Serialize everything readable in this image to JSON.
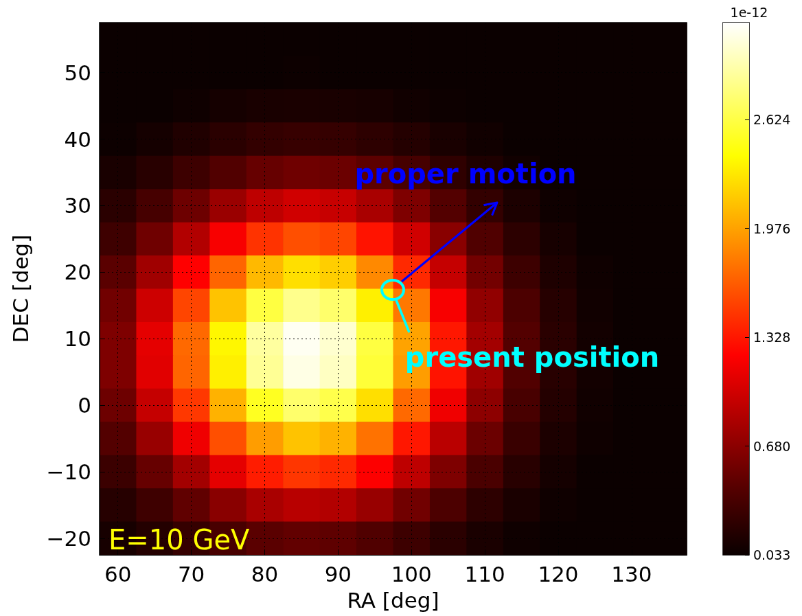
{
  "chart_data": {
    "type": "heatmap",
    "xlabel": "RA [deg]",
    "ylabel": "DEC [deg]",
    "clabel": "1e-12",
    "categories": [
      "60",
      null,
      "70",
      null,
      "80",
      null,
      "90",
      null,
      "100",
      null,
      "110",
      null,
      "120",
      null,
      "130",
      null
    ],
    "y_categories": [
      null,
      "50",
      null,
      "40",
      null,
      "30",
      null,
      "20",
      null,
      "10",
      null,
      "0",
      null,
      "−10",
      null,
      "−20"
    ],
    "cells": [
      [
        0.04,
        0.04,
        0.04,
        0.04,
        0.04,
        0.04,
        0.04,
        0.04,
        0.04,
        0.04,
        0.04,
        0.04,
        0.04,
        0.04,
        0.04,
        0.04
      ],
      [
        0.04,
        0.04,
        0.04,
        0.04,
        0.04,
        0.05,
        0.04,
        0.04,
        0.04,
        0.04,
        0.04,
        0.04,
        0.04,
        0.04,
        0.04,
        0.04
      ],
      [
        0.04,
        0.04,
        0.06,
        0.09,
        0.11,
        0.12,
        0.11,
        0.1,
        0.07,
        0.05,
        0.04,
        0.04,
        0.04,
        0.04,
        0.04,
        0.04
      ],
      [
        0.05,
        0.09,
        0.15,
        0.2,
        0.25,
        0.27,
        0.26,
        0.22,
        0.17,
        0.11,
        0.07,
        0.04,
        0.04,
        0.04,
        0.04,
        0.04
      ],
      [
        0.11,
        0.19,
        0.3,
        0.41,
        0.51,
        0.55,
        0.53,
        0.46,
        0.35,
        0.23,
        0.14,
        0.07,
        0.04,
        0.04,
        0.04,
        0.04
      ],
      [
        0.2,
        0.35,
        0.54,
        0.75,
        0.92,
        1.0,
        0.96,
        0.82,
        0.62,
        0.42,
        0.25,
        0.13,
        0.06,
        0.04,
        0.04,
        0.04
      ],
      [
        0.31,
        0.55,
        0.86,
        1.19,
        1.46,
        1.59,
        1.54,
        1.31,
        1.0,
        0.67,
        0.4,
        0.21,
        0.1,
        0.04,
        0.04,
        0.04
      ],
      [
        0.45,
        0.78,
        1.22,
        1.69,
        2.08,
        2.26,
        2.18,
        1.86,
        1.41,
        0.95,
        0.57,
        0.3,
        0.14,
        0.06,
        0.04,
        0.04
      ],
      [
        0.56,
        0.99,
        1.54,
        2.13,
        2.61,
        2.84,
        2.74,
        2.34,
        1.78,
        1.19,
        0.71,
        0.38,
        0.18,
        0.07,
        0.04,
        0.04
      ],
      [
        0.62,
        1.1,
        1.71,
        2.37,
        2.9,
        3.16,
        3.05,
        2.61,
        1.98,
        1.33,
        0.79,
        0.42,
        0.2,
        0.08,
        0.04,
        0.04
      ],
      [
        0.62,
        1.08,
        1.69,
        2.34,
        2.87,
        3.12,
        3.01,
        2.58,
        1.95,
        1.31,
        0.78,
        0.41,
        0.19,
        0.08,
        0.04,
        0.04
      ],
      [
        0.54,
        0.95,
        1.48,
        2.05,
        2.51,
        2.74,
        2.64,
        2.26,
        1.71,
        1.15,
        0.69,
        0.36,
        0.17,
        0.07,
        0.04,
        0.04
      ],
      [
        0.42,
        0.74,
        1.15,
        1.59,
        1.95,
        2.13,
        2.05,
        1.75,
        1.33,
        0.9,
        0.53,
        0.28,
        0.13,
        0.06,
        0.04,
        0.04
      ],
      [
        0.29,
        0.51,
        0.79,
        1.1,
        1.35,
        1.47,
        1.41,
        1.21,
        0.92,
        0.62,
        0.37,
        0.19,
        0.09,
        0.04,
        0.04,
        0.04
      ],
      [
        0.18,
        0.31,
        0.48,
        0.67,
        0.82,
        0.89,
        0.86,
        0.74,
        0.56,
        0.38,
        0.22,
        0.12,
        0.06,
        0.04,
        0.04,
        0.04
      ],
      [
        0.1,
        0.17,
        0.26,
        0.36,
        0.45,
        0.49,
        0.47,
        0.4,
        0.3,
        0.2,
        0.12,
        0.06,
        0.04,
        0.04,
        0.04,
        0.04
      ]
    ],
    "clim": [
      0.033,
      3.2
    ],
    "cticks": [
      {
        "value": 0.033,
        "label": "0.033"
      },
      {
        "value": 0.68,
        "label": "0.680"
      },
      {
        "value": 1.328,
        "label": "1.328"
      },
      {
        "value": 1.976,
        "label": "1.976"
      },
      {
        "value": 2.624,
        "label": "2.624"
      }
    ],
    "grid": true,
    "annotations": [
      "proper motion",
      "present position",
      "E=10 GeV"
    ]
  }
}
